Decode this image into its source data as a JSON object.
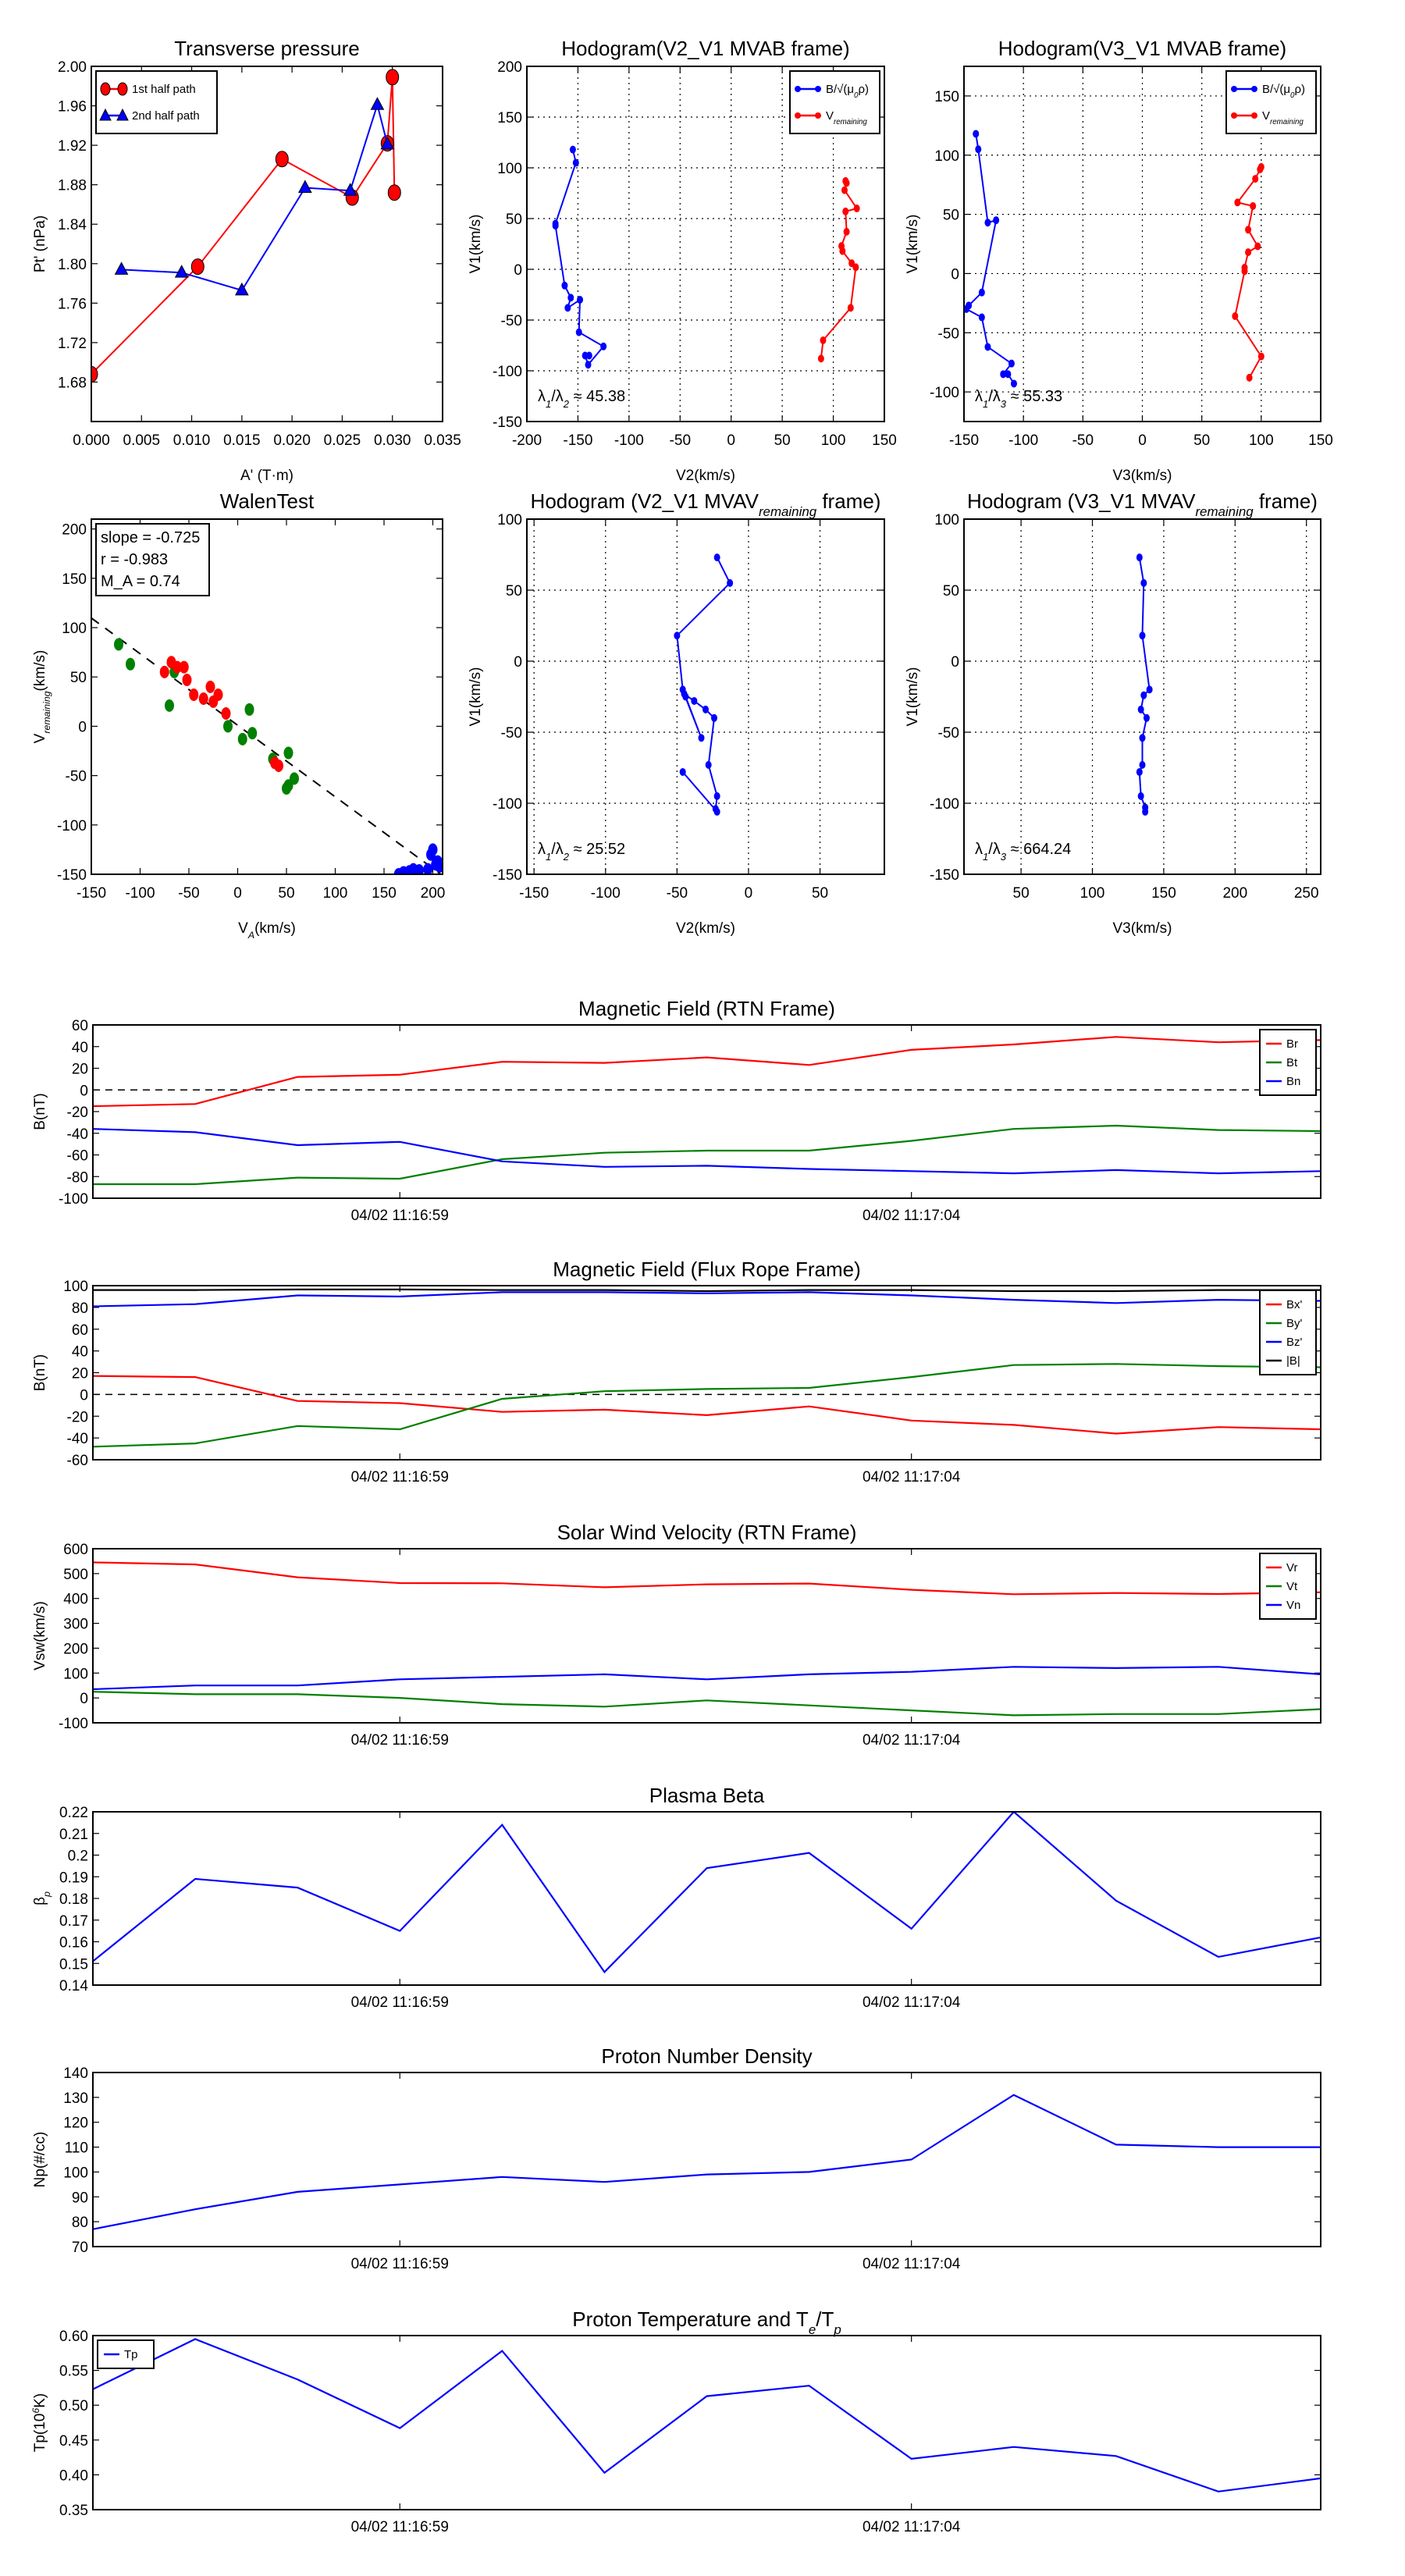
{
  "chart_data": [
    {
      "type": "line",
      "title": "Transverse pressure",
      "xlabel": "A' (T·m)",
      "ylabel": "Pt' (nPa)",
      "xlim": [
        0,
        0.035
      ],
      "ylim": [
        1.64,
        2.0
      ],
      "xticks": [
        0,
        0.005,
        0.01,
        0.015,
        0.02,
        0.025,
        0.03,
        0.035
      ],
      "xticklabels": [
        "0.000",
        "0.005",
        "0.010",
        "0.015",
        "0.020",
        "0.025",
        "0.030",
        "0.035"
      ],
      "yticks": [
        1.68,
        1.72,
        1.76,
        1.8,
        1.84,
        1.88,
        1.92,
        1.96,
        2.0
      ],
      "yticklabels": [
        "1.68",
        "1.72",
        "1.76",
        "1.80",
        "1.84",
        "1.88",
        "1.92",
        "1.96",
        "2.00"
      ],
      "grid": false,
      "legend": "top-left",
      "series": [
        {
          "name": "1st half path",
          "color": "#ff0000",
          "marker": "circle",
          "x": [
            0.0,
            0.0106,
            0.019,
            0.026,
            0.0295,
            0.03,
            0.0302
          ],
          "y": [
            1.688,
            1.797,
            1.906,
            1.867,
            1.922,
            1.989,
            1.872
          ]
        },
        {
          "name": "2nd half path",
          "color": "#0000ff",
          "marker": "triangle",
          "x": [
            0.003,
            0.009,
            0.015,
            0.0213,
            0.0258,
            0.0285,
            0.0295
          ],
          "y": [
            1.794,
            1.791,
            1.773,
            1.877,
            1.874,
            1.961,
            1.921
          ]
        }
      ]
    },
    {
      "type": "line",
      "title": "Hodogram(V2_V1 MVAB frame)",
      "xlabel": "V2(km/s)",
      "ylabel": "V1(km/s)",
      "xlim": [
        -200,
        150
      ],
      "ylim": [
        -150,
        200
      ],
      "xticks": [
        -200,
        -150,
        -100,
        -50,
        0,
        50,
        100,
        150
      ],
      "yticks": [
        -150,
        -100,
        -50,
        0,
        50,
        100,
        150,
        200
      ],
      "grid": true,
      "legend": "top-right",
      "annotation": [
        "λ",
        {
          "t": "1",
          "sub": true
        },
        "/λ",
        {
          "t": "2",
          "sub": true
        },
        " ≈ 45.38"
      ],
      "series": [
        {
          "name": [
            "B/√(μ",
            {
              "t": "0",
              "sub": true
            },
            "ρ)"
          ],
          "color": "#0000ff",
          "marker": "dot",
          "x": [
            -155,
            -152,
            -172,
            -172,
            -163,
            -157,
            -160,
            -148,
            -149,
            -125,
            -140,
            -143,
            -139
          ],
          "y": [
            118,
            105,
            45,
            43,
            -16,
            -28,
            -38,
            -30,
            -62,
            -76,
            -94,
            -85,
            -85
          ]
        },
        {
          "name": [
            "V",
            {
              "t": "remaining",
              "sub": true
            }
          ],
          "color": "#ff0000",
          "marker": "dot",
          "x": [
            112,
            113,
            111,
            123,
            112,
            113,
            108,
            109,
            118,
            122,
            117,
            90,
            88
          ],
          "y": [
            87,
            85,
            78,
            60,
            57,
            37,
            23,
            18,
            6,
            2,
            -38,
            -70,
            -88
          ]
        }
      ]
    },
    {
      "type": "line",
      "title": "Hodogram(V3_V1 MVAB frame)",
      "xlabel": "V3(km/s)",
      "ylabel": "V1(km/s)",
      "xlim": [
        -150,
        150
      ],
      "ylim": [
        -125,
        175
      ],
      "xticks": [
        -150,
        -100,
        -50,
        0,
        50,
        100,
        150
      ],
      "yticks": [
        -100,
        -50,
        0,
        50,
        100,
        150
      ],
      "grid": true,
      "legend": "top-right",
      "annotation": [
        "λ",
        {
          "t": "1",
          "sub": true
        },
        "/λ",
        {
          "t": "3",
          "sub": true
        },
        " ≈ 55.33"
      ],
      "series": [
        {
          "name": [
            "B/√(μ",
            {
              "t": "0",
              "sub": true
            },
            "ρ)"
          ],
          "color": "#0000ff",
          "marker": "dot",
          "x": [
            -140,
            -138,
            -130,
            -123,
            -135,
            -146,
            -148,
            -135,
            -130,
            -110,
            -117,
            -113,
            -108
          ],
          "y": [
            118,
            105,
            43,
            45,
            -16,
            -27,
            -30,
            -37,
            -62,
            -76,
            -85,
            -85,
            -93
          ]
        },
        {
          "name": [
            "V",
            {
              "t": "remaining",
              "sub": true
            }
          ],
          "color": "#ff0000",
          "marker": "dot",
          "x": [
            100,
            99,
            95,
            80,
            93,
            89,
            97,
            89,
            86,
            86,
            78,
            100,
            90
          ],
          "y": [
            90,
            88,
            80,
            60,
            57,
            37,
            23,
            18,
            5,
            2,
            -36,
            -70,
            -88
          ]
        }
      ]
    },
    {
      "type": "scatter",
      "title": "WalenTest",
      "xlabel": [
        "V",
        {
          "t": "A",
          "sub": true
        },
        "(km/s)"
      ],
      "ylabel": [
        "V",
        {
          "t": "remaining",
          "sub": true
        },
        "(km/s)"
      ],
      "xlim": [
        -150,
        210
      ],
      "ylim": [
        -150,
        210
      ],
      "xticks": [
        -150,
        -100,
        -50,
        0,
        50,
        100,
        150,
        200
      ],
      "yticks": [
        -150,
        -100,
        -50,
        0,
        50,
        100,
        150,
        200
      ],
      "grid": false,
      "stats": [
        "slope = -0.725",
        "r = -0.983",
        "M_A = 0.74"
      ],
      "fit": {
        "slope": -0.725,
        "intercept": 1
      },
      "series": [
        {
          "name": "green",
          "color": "#008000",
          "marker": "circle",
          "x": [
            -122,
            -110,
            -65,
            -70,
            12,
            -10,
            15,
            5,
            52,
            36,
            58,
            52,
            50
          ],
          "y": [
            83,
            63,
            55,
            21,
            17,
            0,
            -7,
            -13,
            -27,
            -33,
            -53,
            -60,
            -63
          ]
        },
        {
          "name": "red",
          "color": "#ff0000",
          "marker": "circle",
          "x": [
            -68,
            -62,
            -55,
            -75,
            -52,
            -45,
            -28,
            -35,
            -20,
            -25,
            -12,
            38,
            42
          ],
          "y": [
            65,
            60,
            60,
            55,
            47,
            32,
            40,
            28,
            32,
            25,
            13,
            -37,
            -40
          ]
        },
        {
          "name": "blue",
          "color": "#0000ff",
          "marker": "circle",
          "x": [
            200,
            198,
            205,
            207,
            203,
            195,
            180,
            170,
            165,
            176,
            186
          ],
          "y": [
            -125,
            -130,
            -137,
            -142,
            -140,
            -145,
            -145,
            -148,
            -150,
            -147,
            -146
          ]
        }
      ]
    },
    {
      "type": "line",
      "title": [
        "Hodogram (V2_V1 MVAV",
        {
          "t": "remaining",
          "sub": true
        },
        " frame)"
      ],
      "xlabel": "V2(km/s)",
      "ylabel": "V1(km/s)",
      "xlim": [
        -155,
        95
      ],
      "ylim": [
        -150,
        100
      ],
      "xticks": [
        -150,
        -100,
        -50,
        0,
        50
      ],
      "yticks": [
        -150,
        -100,
        -50,
        0,
        50,
        100
      ],
      "grid": true,
      "annotation": [
        "λ",
        {
          "t": "1",
          "sub": true
        },
        "/λ",
        {
          "t": "2",
          "sub": true
        },
        " ≈ 25.52"
      ],
      "series": [
        {
          "name": "V",
          "color": "#0000ff",
          "marker": "dot",
          "x": [
            -22,
            -13,
            -50,
            -46,
            -44,
            -33,
            -45,
            -38,
            -30,
            -24,
            -28,
            -22,
            -23,
            -22,
            -46
          ],
          "y": [
            73,
            55,
            18,
            -20,
            -25,
            -54,
            -23,
            -28,
            -34,
            -40,
            -73,
            -95,
            -104,
            -106,
            -78
          ]
        }
      ]
    },
    {
      "type": "line",
      "title": [
        "Hodogram (V3_V1 MVAV",
        {
          "t": "remaining",
          "sub": true
        },
        " frame)"
      ],
      "xlabel": "V3(km/s)",
      "ylabel": "V1(km/s)",
      "xlim": [
        10,
        260
      ],
      "ylim": [
        -150,
        100
      ],
      "xticks": [
        50,
        100,
        150,
        200,
        250
      ],
      "yticks": [
        -150,
        -100,
        -50,
        0,
        50,
        100
      ],
      "grid": true,
      "annotation": [
        "λ",
        {
          "t": "1",
          "sub": true
        },
        "/λ",
        {
          "t": "3",
          "sub": true
        },
        " ≈ 664.24"
      ],
      "series": [
        {
          "name": "V",
          "color": "#0000ff",
          "marker": "dot",
          "x": [
            133,
            136,
            135,
            140,
            136,
            134,
            138,
            135,
            135,
            133,
            134,
            137,
            137
          ],
          "y": [
            73,
            55,
            18,
            -20,
            -24,
            -34,
            -40,
            -54,
            -73,
            -78,
            -95,
            -103,
            -106
          ]
        }
      ]
    },
    {
      "type": "line",
      "title": "Magnetic Field (RTN Frame)",
      "ylabel": "B(nT)",
      "xlim": [
        0,
        12
      ],
      "ylim": [
        -100,
        60
      ],
      "xticks": [
        3,
        8
      ],
      "xticklabels": [
        "04/02 11:16:59",
        "04/02 11:17:04"
      ],
      "yticks": [
        -100,
        -80,
        -60,
        -40,
        -20,
        0,
        20,
        40,
        60
      ],
      "zero_line": true,
      "legend": "top-right",
      "series": [
        {
          "name": "Br",
          "color": "#ff0000",
          "y": [
            -15,
            -13,
            12,
            14,
            26,
            25,
            30,
            23,
            37,
            42,
            49,
            44,
            46
          ]
        },
        {
          "name": "Bt",
          "color": "#008000",
          "y": [
            -87,
            -87,
            -81,
            -82,
            -64,
            -58,
            -56,
            -56,
            -47,
            -36,
            -33,
            -37,
            -38
          ]
        },
        {
          "name": "Bn",
          "color": "#0000ff",
          "y": [
            -36,
            -39,
            -51,
            -48,
            -66,
            -71,
            -70,
            -73,
            -75,
            -77,
            -74,
            -77,
            -75
          ]
        }
      ]
    },
    {
      "type": "line",
      "title": "Magnetic Field (Flux Rope Frame)",
      "ylabel": "B(nT)",
      "xlim": [
        0,
        12
      ],
      "ylim": [
        -60,
        100
      ],
      "xticks": [
        3,
        8
      ],
      "xticklabels": [
        "04/02 11:16:59",
        "04/02 11:17:04"
      ],
      "yticks": [
        -60,
        -40,
        -20,
        0,
        20,
        40,
        60,
        80,
        100
      ],
      "zero_line": true,
      "legend": "top-right",
      "series": [
        {
          "name": "Bx'",
          "color": "#ff0000",
          "y": [
            17,
            16,
            -6,
            -8,
            -16,
            -14,
            -19,
            -11,
            -24,
            -28,
            -36,
            -30,
            -32
          ]
        },
        {
          "name": "By'",
          "color": "#008000",
          "y": [
            -48,
            -45,
            -29,
            -32,
            -4,
            3,
            5,
            6,
            16,
            27,
            28,
            26,
            25
          ]
        },
        {
          "name": "Bz'",
          "color": "#0000ff",
          "y": [
            81,
            83,
            91,
            90,
            94,
            94,
            93,
            94,
            91,
            87,
            84,
            87,
            86
          ]
        },
        {
          "name": "|B|",
          "color": "#000000",
          "y": [
            96,
            96,
            96.5,
            96.5,
            96,
            96,
            95,
            96,
            96,
            95,
            95,
            96,
            96
          ]
        }
      ]
    },
    {
      "type": "line",
      "title": "Solar Wind Velocity (RTN Frame)",
      "ylabel": "Vsw(km/s)",
      "xlim": [
        0,
        12
      ],
      "ylim": [
        -100,
        600
      ],
      "xticks": [
        3,
        8
      ],
      "xticklabels": [
        "04/02 11:16:59",
        "04/02 11:17:04"
      ],
      "yticks": [
        -100,
        0,
        100,
        200,
        300,
        400,
        500,
        600
      ],
      "legend": "top-right",
      "series": [
        {
          "name": "Vr",
          "color": "#ff0000",
          "y": [
            545,
            537,
            485,
            462,
            461,
            445,
            457,
            460,
            435,
            417,
            422,
            418,
            425
          ]
        },
        {
          "name": "Vt",
          "color": "#008000",
          "y": [
            25,
            15,
            15,
            0,
            -25,
            -35,
            -10,
            -30,
            -50,
            -70,
            -65,
            -65,
            -45
          ]
        },
        {
          "name": "Vn",
          "color": "#0000ff",
          "y": [
            35,
            50,
            50,
            75,
            85,
            95,
            75,
            95,
            105,
            125,
            120,
            125,
            95
          ]
        }
      ]
    },
    {
      "type": "line",
      "title": "Plasma Beta",
      "ylabel": [
        "β",
        {
          "t": "p",
          "sub": true
        }
      ],
      "xlim": [
        0,
        12
      ],
      "ylim": [
        0.14,
        0.22
      ],
      "xticks": [
        3,
        8
      ],
      "xticklabels": [
        "04/02 11:16:59",
        "04/02 11:17:04"
      ],
      "yticks": [
        0.14,
        0.15,
        0.16,
        0.17,
        0.18,
        0.19,
        0.2,
        0.21,
        0.22
      ],
      "yticklabels": [
        "0.14",
        "0.15",
        "0.16",
        "0.17",
        "0.18",
        "0.19",
        "0.2",
        "0.21",
        "0.22"
      ],
      "series": [
        {
          "name": "beta",
          "color": "#0000ff",
          "y": [
            0.151,
            0.189,
            0.185,
            0.165,
            0.214,
            0.146,
            0.194,
            0.201,
            0.166,
            0.22,
            0.179,
            0.153,
            0.162
          ]
        }
      ]
    },
    {
      "type": "line",
      "title": "Proton Number Density",
      "ylabel": "Np(#/cc)",
      "xlim": [
        0,
        12
      ],
      "ylim": [
        70,
        140
      ],
      "xticks": [
        3,
        8
      ],
      "xticklabels": [
        "04/02 11:16:59",
        "04/02 11:17:04"
      ],
      "yticks": [
        70,
        80,
        90,
        100,
        110,
        120,
        130,
        140
      ],
      "series": [
        {
          "name": "Np",
          "color": "#0000ff",
          "y": [
            77,
            85,
            92,
            95,
            98,
            96,
            99,
            100,
            105,
            131,
            111,
            110,
            110
          ]
        }
      ]
    },
    {
      "type": "line",
      "title": [
        "Proton Temperature and T",
        {
          "t": "e",
          "sub": true
        },
        "/T",
        {
          "t": "p",
          "sub": true
        }
      ],
      "ylabel": [
        "Tp(10",
        {
          "t": "6",
          "sup": true
        },
        "K)"
      ],
      "xlim": [
        0,
        12
      ],
      "ylim": [
        0.35,
        0.6
      ],
      "xticks": [
        3,
        8
      ],
      "xticklabels": [
        "04/02 11:16:59",
        "04/02 11:17:04"
      ],
      "yticks": [
        0.35,
        0.4,
        0.45,
        0.5,
        0.55,
        0.6
      ],
      "yticklabels": [
        "0.35",
        "0.40",
        "0.45",
        "0.50",
        "0.55",
        "0.60"
      ],
      "legend": "top-left",
      "series": [
        {
          "name": "Tp",
          "color": "#0000ff",
          "y": [
            0.523,
            0.595,
            0.537,
            0.467,
            0.578,
            0.403,
            0.513,
            0.528,
            0.423,
            0.44,
            0.427,
            0.376,
            0.395
          ]
        }
      ]
    }
  ]
}
